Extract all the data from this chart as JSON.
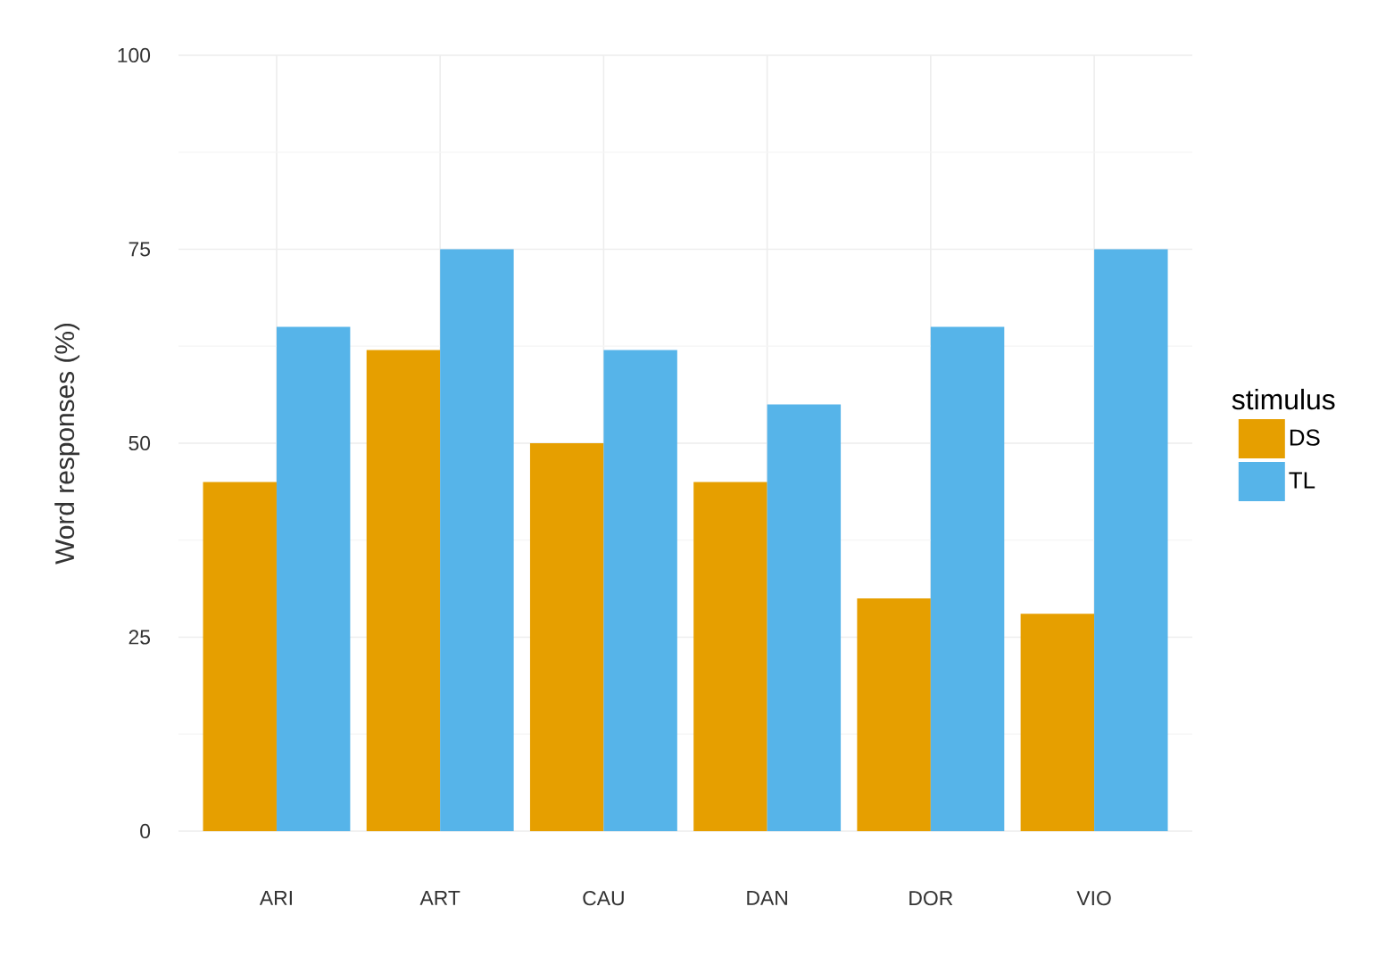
{
  "chart_data": {
    "type": "bar",
    "ylabel": "Word responses (%)",
    "legend_title": "stimulus",
    "categories": [
      "ARI",
      "ART",
      "CAU",
      "DAN",
      "DOR",
      "VIO"
    ],
    "series": [
      {
        "name": "DS",
        "color": "#e69f00",
        "values": [
          45,
          62,
          50,
          45,
          30,
          28
        ]
      },
      {
        "name": "TL",
        "color": "#56b4e9",
        "values": [
          65,
          75,
          62,
          55,
          65,
          75
        ]
      }
    ],
    "ylim": [
      0,
      100
    ],
    "yticks": [
      0,
      25,
      50,
      75,
      100
    ],
    "grid": true,
    "legend": "right"
  }
}
